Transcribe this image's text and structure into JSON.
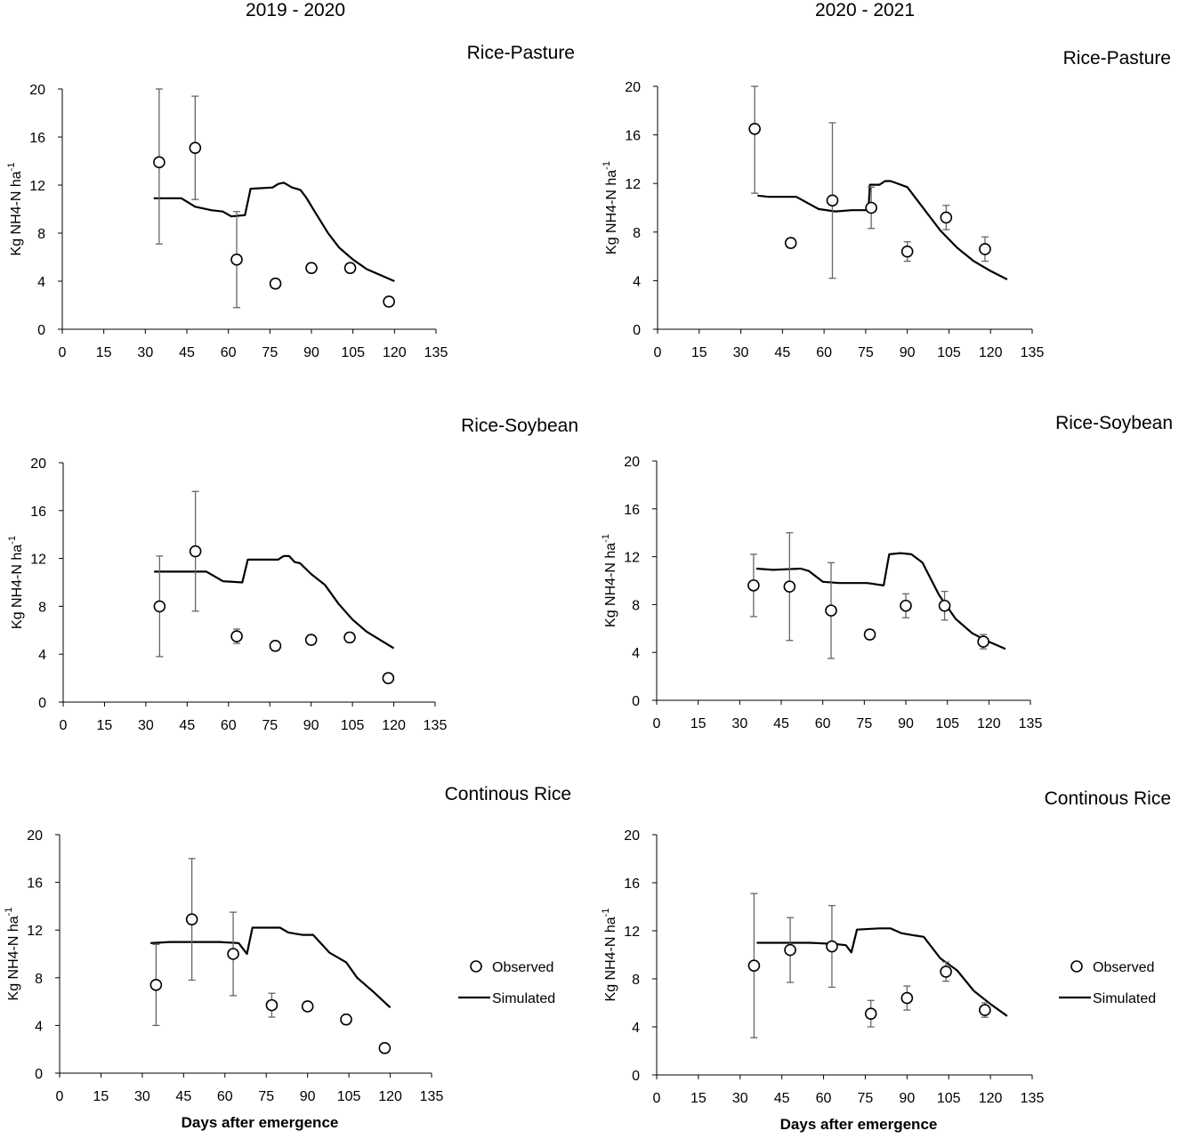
{
  "column_titles": [
    "2019 - 2020",
    "2020 - 2021"
  ],
  "chart_data": [
    {
      "type": "scatter",
      "panel": "2019-2020 Rice-Pasture",
      "title": "Rice-Pasture",
      "xlabel": "",
      "ylabel": "Kg NH4-N ha-1",
      "xlim": [
        0,
        135
      ],
      "ylim": [
        0,
        20
      ],
      "xticks": [
        0,
        15,
        30,
        45,
        60,
        75,
        90,
        105,
        120,
        135
      ],
      "yticks": [
        0,
        4,
        8,
        12,
        16,
        20
      ],
      "legend": null,
      "observed": {
        "x": [
          35,
          48,
          63,
          77,
          90,
          104,
          118
        ],
        "y": [
          13.9,
          15.1,
          5.8,
          3.8,
          5.1,
          5.1,
          2.3
        ],
        "err": [
          6.8,
          4.3,
          4.0,
          0.4,
          0.4,
          0.4,
          0.4
        ]
      },
      "simulated": {
        "x": [
          33,
          43,
          48,
          54,
          58,
          61,
          66,
          68,
          76,
          78,
          80,
          83,
          86,
          88,
          92,
          96,
          100,
          105,
          110,
          115,
          120
        ],
        "y": [
          10.9,
          10.9,
          10.2,
          9.9,
          9.8,
          9.4,
          9.5,
          11.7,
          11.8,
          12.1,
          12.2,
          11.8,
          11.6,
          11.0,
          9.5,
          8.0,
          6.8,
          5.8,
          5.0,
          4.5,
          4.0
        ]
      }
    },
    {
      "type": "scatter",
      "panel": "2020-2021 Rice-Pasture",
      "title": "Rice-Pasture",
      "xlabel": "",
      "ylabel": "Kg NH4-N ha-1",
      "xlim": [
        0,
        135
      ],
      "ylim": [
        0,
        20
      ],
      "xticks": [
        0,
        15,
        30,
        45,
        60,
        75,
        90,
        105,
        120,
        135
      ],
      "yticks": [
        0,
        4,
        8,
        12,
        16,
        20
      ],
      "legend": null,
      "observed": {
        "x": [
          35,
          48,
          63,
          77,
          90,
          104,
          118
        ],
        "y": [
          16.5,
          7.1,
          10.6,
          10.0,
          6.4,
          9.2,
          6.6
        ],
        "err": [
          5.3,
          0.4,
          6.4,
          1.7,
          0.8,
          1.0,
          1.0
        ]
      },
      "simulated": {
        "x": [
          36,
          40,
          50,
          58,
          64,
          70,
          76,
          76.5,
          80,
          82,
          84,
          90,
          96,
          102,
          108,
          114,
          120,
          126
        ],
        "y": [
          11.0,
          10.9,
          10.9,
          9.9,
          9.7,
          9.8,
          9.8,
          11.9,
          11.9,
          12.2,
          12.2,
          11.7,
          9.9,
          8.1,
          6.7,
          5.6,
          4.8,
          4.1
        ]
      }
    },
    {
      "type": "scatter",
      "panel": "2019-2020 Rice-Soybean",
      "title": "Rice-Soybean",
      "xlabel": "",
      "ylabel": "Kg NH4-N ha-1",
      "xlim": [
        0,
        135
      ],
      "ylim": [
        0,
        20
      ],
      "xticks": [
        0,
        15,
        30,
        45,
        60,
        75,
        90,
        105,
        120,
        135
      ],
      "yticks": [
        0,
        4,
        8,
        12,
        16,
        20
      ],
      "legend": null,
      "observed": {
        "x": [
          35,
          48,
          63,
          77,
          90,
          104,
          118
        ],
        "y": [
          8.0,
          12.6,
          5.5,
          4.7,
          5.2,
          5.4,
          2.0
        ],
        "err": [
          4.2,
          5.0,
          0.6,
          0.4,
          0.4,
          0.4,
          0.4
        ]
      },
      "simulated": {
        "x": [
          33,
          42,
          52,
          58,
          65,
          67,
          78,
          80,
          82,
          84,
          86,
          90,
          95,
          100,
          105,
          110,
          115,
          120
        ],
        "y": [
          10.9,
          10.9,
          10.9,
          10.1,
          10.0,
          11.9,
          11.9,
          12.2,
          12.2,
          11.7,
          11.6,
          10.7,
          9.8,
          8.2,
          6.9,
          5.9,
          5.2,
          4.5
        ]
      }
    },
    {
      "type": "scatter",
      "panel": "2020-2021 Rice-Soybean",
      "title": "Rice-Soybean",
      "xlabel": "",
      "ylabel": "Kg NH4-N ha-1",
      "xlim": [
        0,
        135
      ],
      "ylim": [
        0,
        20
      ],
      "xticks": [
        0,
        15,
        30,
        45,
        60,
        75,
        90,
        105,
        120,
        135
      ],
      "yticks": [
        0,
        4,
        8,
        12,
        16,
        20
      ],
      "legend": null,
      "observed": {
        "x": [
          35,
          48,
          63,
          77,
          90,
          104,
          118
        ],
        "y": [
          9.6,
          9.5,
          7.5,
          5.5,
          7.9,
          7.9,
          4.9
        ],
        "err": [
          2.6,
          4.5,
          4.0,
          0.4,
          1.0,
          1.2,
          0.6
        ]
      },
      "simulated": {
        "x": [
          36,
          42,
          52,
          55,
          60,
          66,
          76,
          82,
          84,
          88,
          92,
          96,
          102,
          108,
          114,
          120,
          126
        ],
        "y": [
          11.0,
          10.9,
          11.0,
          10.8,
          9.9,
          9.8,
          9.8,
          9.6,
          12.2,
          12.3,
          12.2,
          11.5,
          8.8,
          6.8,
          5.6,
          4.9,
          4.3
        ]
      }
    },
    {
      "type": "scatter",
      "panel": "2019-2020 Continous Rice",
      "title": "Continous Rice",
      "xlabel": "Days after emergence",
      "ylabel": "Kg NH4-N ha-1",
      "xlim": [
        0,
        135
      ],
      "ylim": [
        0,
        20
      ],
      "xticks": [
        0,
        15,
        30,
        45,
        60,
        75,
        90,
        105,
        120,
        135
      ],
      "yticks": [
        0,
        4,
        8,
        12,
        16,
        20
      ],
      "legend": {
        "placement": "right",
        "entries": [
          "Observed",
          "Simulated"
        ]
      },
      "observed": {
        "x": [
          35,
          48,
          63,
          77,
          90,
          104,
          118
        ],
        "y": [
          7.4,
          12.9,
          10.0,
          5.7,
          5.6,
          4.5,
          2.1
        ],
        "err": [
          3.4,
          5.1,
          3.5,
          1.0,
          0.4,
          0.4,
          0.4
        ]
      },
      "simulated": {
        "x": [
          33,
          40,
          48,
          58,
          65,
          68,
          70,
          80,
          83,
          88,
          92,
          98,
          104,
          108,
          114,
          120
        ],
        "y": [
          10.9,
          11.0,
          11.0,
          11.0,
          10.9,
          10.0,
          12.2,
          12.2,
          11.8,
          11.6,
          11.6,
          10.1,
          9.3,
          8.0,
          6.8,
          5.5
        ]
      }
    },
    {
      "type": "scatter",
      "panel": "2020-2021 Continous Rice",
      "title": "Continous Rice",
      "xlabel": "Days after emergence",
      "ylabel": "Kg NH4-N ha-1",
      "xlim": [
        0,
        135
      ],
      "ylim": [
        0,
        20
      ],
      "xticks": [
        0,
        15,
        30,
        45,
        60,
        75,
        90,
        105,
        120,
        135
      ],
      "yticks": [
        0,
        4,
        8,
        12,
        16,
        20
      ],
      "legend": {
        "placement": "right",
        "entries": [
          "Observed",
          "Simulated"
        ]
      },
      "observed": {
        "x": [
          35,
          48,
          63,
          77,
          90,
          104,
          118
        ],
        "y": [
          9.1,
          10.4,
          10.7,
          5.1,
          6.4,
          8.6,
          5.4
        ],
        "err": [
          6.0,
          2.7,
          3.4,
          1.1,
          1.0,
          0.8,
          0.6
        ]
      },
      "simulated": {
        "x": [
          36,
          45,
          55,
          64,
          68,
          70,
          72,
          80,
          84,
          88,
          93,
          96,
          102,
          108,
          114,
          120,
          126
        ],
        "y": [
          11.0,
          11.0,
          11.0,
          10.9,
          10.8,
          10.2,
          12.1,
          12.2,
          12.2,
          11.8,
          11.6,
          11.5,
          9.7,
          8.7,
          7.0,
          5.9,
          4.9
        ]
      }
    }
  ]
}
